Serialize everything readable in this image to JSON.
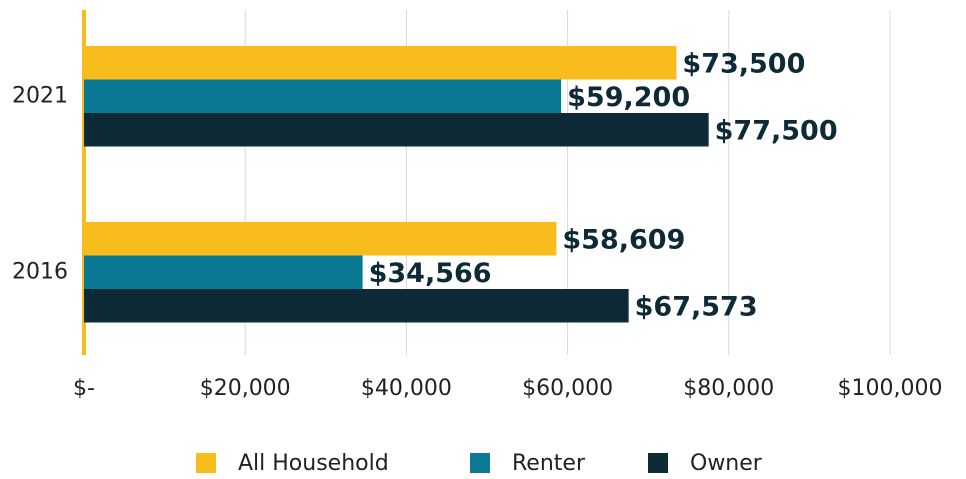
{
  "chart_data": {
    "type": "bar",
    "orientation": "horizontal",
    "categories": [
      "2021",
      "2016"
    ],
    "series": [
      {
        "name": "All Household",
        "color": "#f8bc1c",
        "values": [
          73500,
          58609
        ],
        "value_labels": [
          "$73,500",
          "$58,609"
        ]
      },
      {
        "name": "Renter",
        "color": "#0a7a94",
        "values": [
          59200,
          34566
        ],
        "value_labels": [
          "$59,200",
          "$34,566"
        ]
      },
      {
        "name": "Owner",
        "color": "#0d2a36",
        "values": [
          77500,
          67573
        ],
        "value_labels": [
          "$77,500",
          "$67,573"
        ]
      }
    ],
    "xlim": [
      0,
      100000
    ],
    "xticks": [
      {
        "value": 0,
        "label": "$-"
      },
      {
        "value": 20000,
        "label": "$20,000"
      },
      {
        "value": 40000,
        "label": "$40,000"
      },
      {
        "value": 60000,
        "label": "$60,000"
      },
      {
        "value": 80000,
        "label": "$80,000"
      },
      {
        "value": 100000,
        "label": "$100,000"
      }
    ],
    "grid": true,
    "legend": "bottom"
  }
}
